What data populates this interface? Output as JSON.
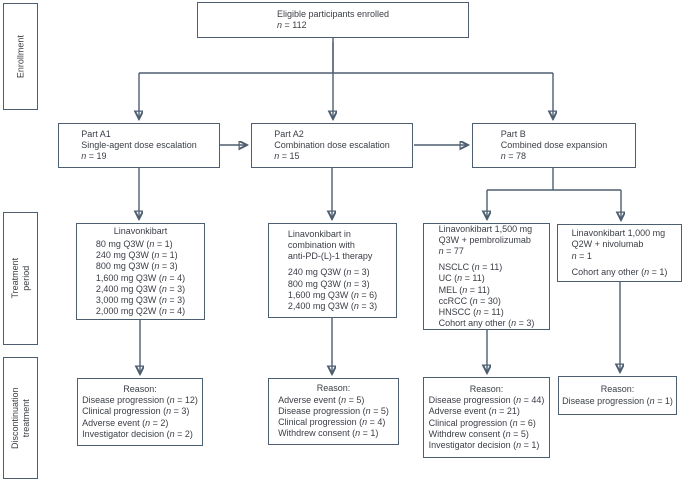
{
  "colors": {
    "border": "#4e5e71",
    "text": "#3a3e45",
    "background": "#ffffff"
  },
  "side_labels": [
    {
      "id": "enrollment",
      "lines": [
        "Enrollment"
      ]
    },
    {
      "id": "treatment-period",
      "lines": [
        "Treatment",
        "period"
      ]
    },
    {
      "id": "discontinuation-treatment",
      "lines": [
        "Discontinuation",
        "treatment"
      ]
    }
  ],
  "enrollment": {
    "lines": [
      "Eligible participants enrolled",
      "n = 112"
    ]
  },
  "parts": [
    {
      "id": "part-a1",
      "lines": [
        "Part A1",
        "Single-agent dose escalation",
        "n = 19"
      ]
    },
    {
      "id": "part-a2",
      "lines": [
        "Part A2",
        "Combination dose escalation",
        "n = 15"
      ]
    },
    {
      "id": "part-b",
      "lines": [
        "Part B",
        "Combined dose expansion",
        "n = 78"
      ]
    }
  ],
  "treatments": [
    {
      "id": "treatment-a1",
      "title": "Linavonkibart",
      "doses": [
        "80 mg Q3W (n = 1)",
        "240 mg Q3W (n = 1)",
        "800 mg Q3W (n = 3)",
        "1,600 mg Q3W (n = 4)",
        "2,400 mg Q3W (n = 3)",
        "3,000 mg Q3W (n = 3)",
        "2,000 mg Q2W (n = 4)"
      ]
    },
    {
      "id": "treatment-a2",
      "header": [
        "Linavonkibart in",
        "combination with",
        "anti-PD-(L)-1 therapy"
      ],
      "doses": [
        "240 mg Q3W (n = 3)",
        "800 mg Q3W (n = 3)",
        "1,600 mg Q3W (n = 6)",
        "2,400 mg Q3W (n = 3)"
      ]
    },
    {
      "id": "treatment-b-pembrolizumab",
      "header": [
        "Linavonkibart 1,500 mg",
        "Q3W + pembrolizumab",
        "n = 77"
      ],
      "doses": [
        "NSCLC (n = 11)",
        "UC (n = 11)",
        "MEL (n = 11)",
        "ccRCC (n = 30)",
        "HNSCC (n = 11)",
        "Cohort any other (n = 3)"
      ]
    },
    {
      "id": "treatment-b-nivolumab",
      "header": [
        "Linavonkibart 1,000 mg",
        "Q2W + nivolumab",
        "n = 1"
      ],
      "doses": [
        "Cohort any other (n = 1)"
      ]
    }
  ],
  "discontinuations": [
    {
      "id": "discontinuation-a1",
      "title": "Reason:",
      "reasons": [
        "Disease progression (n = 12)",
        "Clinical progression (n = 3)",
        "Adverse event (n = 2)",
        "Investigator decision (n = 2)"
      ]
    },
    {
      "id": "discontinuation-a2",
      "title": "Reason:",
      "reasons": [
        "Adverse event (n = 5)",
        "Disease progression (n = 5)",
        "Clinical progression (n = 4)",
        "Withdrew consent (n = 1)"
      ]
    },
    {
      "id": "discontinuation-b-pembrolizumab",
      "title": "Reason:",
      "reasons": [
        "Disease progression (n = 44)",
        "Adverse event (n = 21)",
        "Clinical progression (n = 6)",
        "Withdrew consent (n = 5)",
        "Investigator decision (n = 1)"
      ]
    },
    {
      "id": "discontinuation-b-nivolumab",
      "title": "Reason:",
      "reasons": [
        "Disease progression (n = 1)"
      ]
    }
  ]
}
